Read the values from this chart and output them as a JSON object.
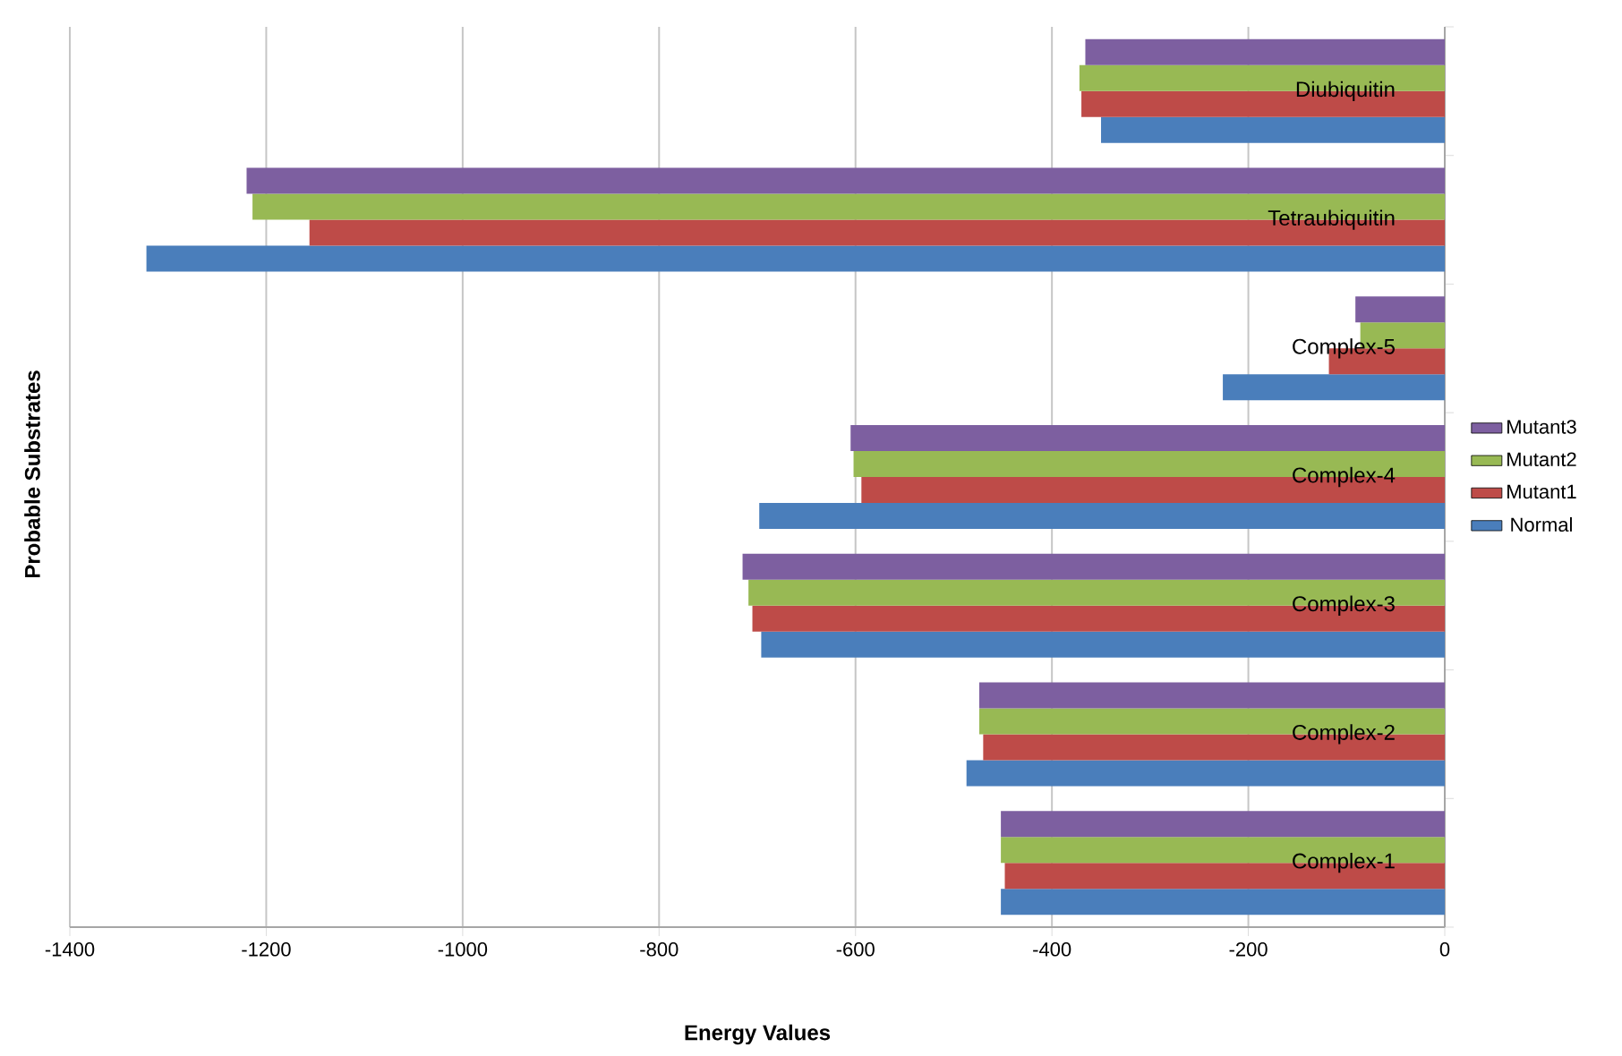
{
  "chart_data": {
    "type": "bar",
    "orientation": "horizontal",
    "xlabel": "Energy Values",
    "ylabel": "Probable Substrates",
    "categories": [
      "Diubiquitin",
      "Tetraubiquitin",
      "Complex-5",
      "Complex-4",
      "Complex-3",
      "Complex-2",
      "Complex-1"
    ],
    "series": [
      {
        "name": "Normal",
        "color": "#4a7ebb",
        "values": [
          -350,
          -1322,
          -226,
          -698,
          -696,
          -487,
          -452
        ]
      },
      {
        "name": "Mutant1",
        "color": "#be4b48",
        "values": [
          -370,
          -1156,
          -118,
          -594,
          -705,
          -470,
          -448
        ]
      },
      {
        "name": "Mutant2",
        "color": "#98b954",
        "values": [
          -372,
          -1214,
          -86,
          -602,
          -709,
          -474,
          -452
        ]
      },
      {
        "name": "Mutant3",
        "color": "#7d5fa0",
        "values": [
          -366,
          -1220,
          -91,
          -605,
          -715,
          -474,
          -452
        ]
      }
    ],
    "xlim": [
      -1400,
      0
    ],
    "xticks": [
      -1400,
      -1200,
      -1000,
      -800,
      -600,
      -400,
      -200,
      0
    ],
    "grid": "x",
    "legend": "right"
  }
}
